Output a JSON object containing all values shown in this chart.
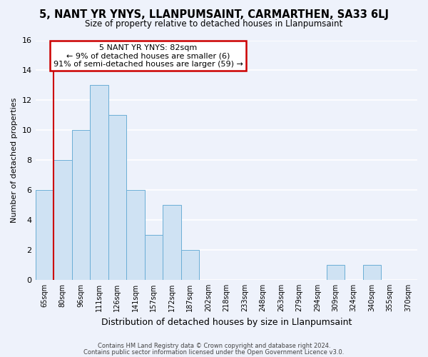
{
  "title": "5, NANT YR YNYS, LLANPUMSAINT, CARMARTHEN, SA33 6LJ",
  "subtitle": "Size of property relative to detached houses in Llanpumsaint",
  "xlabel": "Distribution of detached houses by size in Llanpumsaint",
  "ylabel": "Number of detached properties",
  "bins": [
    "65sqm",
    "80sqm",
    "96sqm",
    "111sqm",
    "126sqm",
    "141sqm",
    "157sqm",
    "172sqm",
    "187sqm",
    "202sqm",
    "218sqm",
    "233sqm",
    "248sqm",
    "263sqm",
    "279sqm",
    "294sqm",
    "309sqm",
    "324sqm",
    "340sqm",
    "355sqm",
    "370sqm"
  ],
  "values": [
    6,
    8,
    10,
    13,
    11,
    6,
    3,
    5,
    2,
    0,
    0,
    0,
    0,
    0,
    0,
    0,
    1,
    0,
    1,
    0,
    0
  ],
  "bar_color": "#cfe2f3",
  "bar_edge_color": "#6baed6",
  "marker_color": "#cc0000",
  "annotation_title": "5 NANT YR YNYS: 82sqm",
  "annotation_line1": "← 9% of detached houses are smaller (6)",
  "annotation_line2": "91% of semi-detached houses are larger (59) →",
  "ylim": [
    0,
    16
  ],
  "yticks": [
    0,
    2,
    4,
    6,
    8,
    10,
    12,
    14,
    16
  ],
  "footer1": "Contains HM Land Registry data © Crown copyright and database right 2024.",
  "footer2": "Contains public sector information licensed under the Open Government Licence v3.0.",
  "background_color": "#eef2fb"
}
